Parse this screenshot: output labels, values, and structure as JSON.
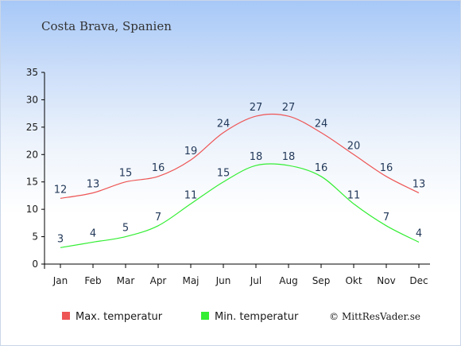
{
  "chart_data": {
    "type": "line",
    "title": "Costa Brava, Spanien",
    "categories": [
      "Jan",
      "Feb",
      "Mar",
      "Apr",
      "Maj",
      "Jun",
      "Jul",
      "Aug",
      "Sep",
      "Okt",
      "Nov",
      "Dec"
    ],
    "ylim": [
      0,
      35
    ],
    "yticks": [
      0,
      5,
      10,
      15,
      20,
      25,
      30,
      35
    ],
    "grid": false,
    "legend_position": "bottom",
    "series": [
      {
        "name": "Max. temperatur",
        "color": "#ee5555",
        "values": [
          12,
          13,
          15,
          16,
          19,
          24,
          27,
          27,
          24,
          20,
          16,
          13
        ]
      },
      {
        "name": "Min. temperatur",
        "color": "#33ee33",
        "values": [
          3,
          4,
          5,
          7,
          11,
          15,
          18,
          18,
          16,
          11,
          7,
          4
        ]
      }
    ],
    "credit": "© MittResVader.se"
  }
}
